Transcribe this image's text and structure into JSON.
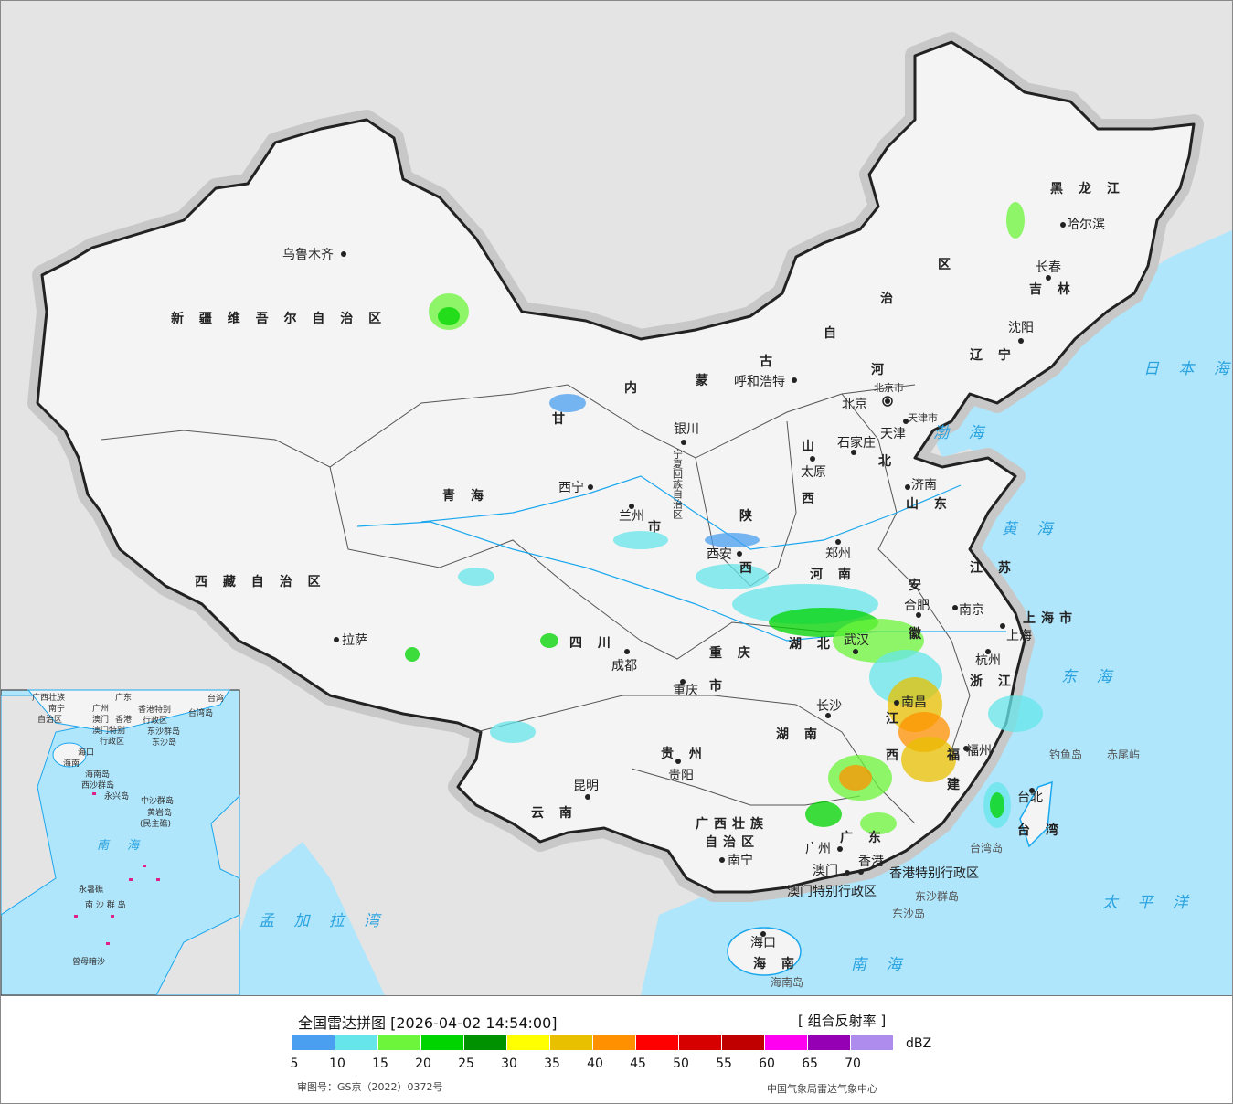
{
  "legend": {
    "title": "全国雷达拼图 [2026-04-02 14:54:00]",
    "product": "[ 组合反射率 ]",
    "unit": "dBZ",
    "colors": [
      "#4a9ff0",
      "#66e6ea",
      "#6cf53b",
      "#00d400",
      "#009100",
      "#ffff00",
      "#e8c000",
      "#ff9000",
      "#ff0000",
      "#d60000",
      "#c00000",
      "#ff00f0",
      "#9600b4",
      "#ae8ced"
    ],
    "ticks": [
      "5",
      "10",
      "15",
      "20",
      "25",
      "30",
      "35",
      "40",
      "45",
      "50",
      "55",
      "60",
      "65",
      "70"
    ],
    "approval": "审图号：GS京（2022）0372号",
    "agency": "中国气象局雷达气象中心"
  },
  "map": {
    "colors": {
      "land": "#f4f4f4",
      "foreign": "#e4e4e4",
      "sea": "#b0e6fb",
      "border": "#222222",
      "river": "#1aa7ee"
    },
    "provinces": [
      "新 疆 维 吾 尔 自 治 区",
      "西 藏 自 治 区",
      "青 海",
      "甘",
      "内",
      "蒙",
      "古",
      "自",
      "治",
      "区",
      "黑 龙 江",
      "吉 林",
      "辽 宁",
      "河",
      "北",
      "山",
      "西",
      "山 东",
      "陕",
      "西",
      "河 南",
      "江 苏",
      "安",
      "徽",
      "湖 北",
      "浙 江",
      "江",
      "西",
      "湖 南",
      "福",
      "建",
      "四 川",
      "重 庆",
      "市",
      "贵 州",
      "云 南",
      "广西壮族",
      "自治区",
      "广 东",
      "海 南",
      "台 湾",
      "上海市",
      "宁夏回族自治区",
      "市"
    ],
    "cities": [
      "乌鲁木齐",
      "拉萨",
      "西宁",
      "兰州",
      "银川",
      "呼和浩特",
      "北京",
      "北京市",
      "天津",
      "天津市",
      "石家庄",
      "太原",
      "济南",
      "郑州",
      "西安",
      "合肥",
      "南京",
      "上海",
      "杭州",
      "武汉",
      "长沙",
      "南昌",
      "福州",
      "台北",
      "成都",
      "重庆",
      "贵阳",
      "昆明",
      "南宁",
      "广州",
      "澳门",
      "香港",
      "海口",
      "哈尔滨",
      "长春",
      "沈阳",
      "香港特别行政区",
      "澳门特别行政区"
    ],
    "seas": [
      "渤 海",
      "黄 海",
      "东 海",
      "日 本 海",
      "太 平 洋",
      "南 海",
      "孟 加 拉 湾"
    ],
    "islands": [
      "钓鱼岛",
      "赤尾屿",
      "台湾岛",
      "东沙群岛",
      "东沙岛",
      "海南岛"
    ],
    "inset": [
      "广西壮族",
      "自治区",
      "南宁",
      "广东",
      "广州",
      "澳门",
      "香港",
      "香港特别",
      "行政区",
      "澳门特别",
      "行政区",
      "台湾岛",
      "东沙群岛",
      "东沙岛",
      "海口",
      "海南",
      "海南岛",
      "西沙群岛",
      "永兴岛",
      "中沙群岛",
      "黄岩岛",
      "(民主礁)",
      "南 海",
      "永暑礁",
      "南 沙 群 岛",
      "曾母暗沙",
      "台湾"
    ]
  }
}
